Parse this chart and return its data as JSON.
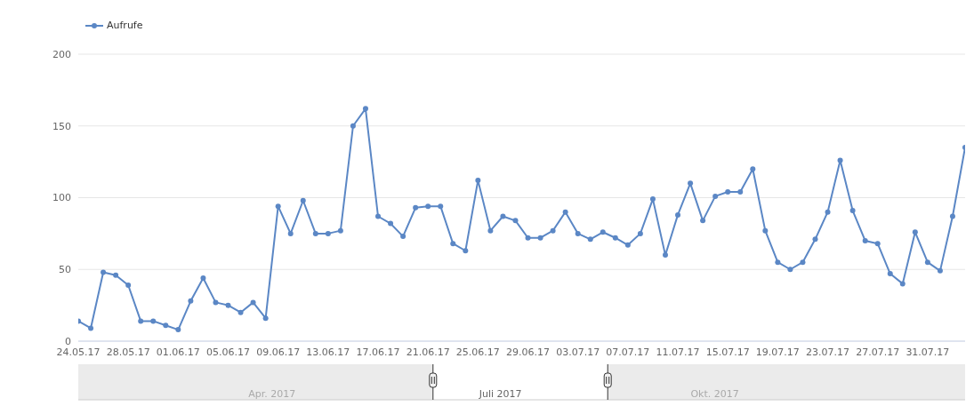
{
  "chart_data": {
    "type": "line",
    "legend": "top left",
    "grid": "y",
    "marker": "circle",
    "line_style": "solid",
    "x": [
      "2017-05-24",
      "2017-05-25",
      "2017-05-26",
      "2017-05-27",
      "2017-05-28",
      "2017-05-29",
      "2017-05-30",
      "2017-05-31",
      "2017-06-01",
      "2017-06-02",
      "2017-06-03",
      "2017-06-04",
      "2017-06-05",
      "2017-06-06",
      "2017-06-07",
      "2017-06-08",
      "2017-06-09",
      "2017-06-10",
      "2017-06-11",
      "2017-06-12",
      "2017-06-13",
      "2017-06-14",
      "2017-06-15",
      "2017-06-16",
      "2017-06-17",
      "2017-06-18",
      "2017-06-19",
      "2017-06-20",
      "2017-06-21",
      "2017-06-22",
      "2017-06-23",
      "2017-06-24",
      "2017-06-25",
      "2017-06-26",
      "2017-06-27",
      "2017-06-28",
      "2017-06-29",
      "2017-06-30",
      "2017-07-01",
      "2017-07-02",
      "2017-07-03",
      "2017-07-04",
      "2017-07-05",
      "2017-07-06",
      "2017-07-07",
      "2017-07-08",
      "2017-07-09",
      "2017-07-10",
      "2017-07-11",
      "2017-07-12",
      "2017-07-13",
      "2017-07-14",
      "2017-07-15",
      "2017-07-16",
      "2017-07-17",
      "2017-07-18",
      "2017-07-19",
      "2017-07-20",
      "2017-07-21",
      "2017-07-22",
      "2017-07-23",
      "2017-07-24",
      "2017-07-25",
      "2017-07-26",
      "2017-07-27",
      "2017-07-28",
      "2017-07-29",
      "2017-07-30",
      "2017-07-31",
      "2017-08-01",
      "2017-08-02",
      "2017-08-03"
    ],
    "series": [
      {
        "name": "Aufrufe",
        "color": "#5b87c5",
        "values": [
          14,
          9,
          48,
          46,
          39,
          14,
          14,
          11,
          8,
          28,
          44,
          27,
          25,
          20,
          27,
          16,
          94,
          75,
          98,
          75,
          75,
          77,
          150,
          162,
          87,
          82,
          73,
          93,
          94,
          94,
          68,
          63,
          112,
          77,
          87,
          84,
          72,
          72,
          77,
          90,
          75,
          71,
          76,
          72,
          67,
          75,
          99,
          60,
          88,
          110,
          84,
          101,
          104,
          104,
          120,
          77,
          55,
          50,
          55,
          71,
          90,
          126,
          91,
          70,
          68,
          47,
          40,
          76,
          55,
          49,
          87,
          135
        ]
      }
    ],
    "xlim": [
      "2017-05-24",
      "2017-08-03"
    ],
    "xticks": [
      {
        "value": "2017-05-24",
        "label": "24.05.17"
      },
      {
        "value": "2017-05-28",
        "label": "28.05.17"
      },
      {
        "value": "2017-06-01",
        "label": "01.06.17"
      },
      {
        "value": "2017-06-05",
        "label": "05.06.17"
      },
      {
        "value": "2017-06-09",
        "label": "09.06.17"
      },
      {
        "value": "2017-06-13",
        "label": "13.06.17"
      },
      {
        "value": "2017-06-17",
        "label": "17.06.17"
      },
      {
        "value": "2017-06-21",
        "label": "21.06.17"
      },
      {
        "value": "2017-06-25",
        "label": "25.06.17"
      },
      {
        "value": "2017-06-29",
        "label": "29.06.17"
      },
      {
        "value": "2017-07-03",
        "label": "03.07.17"
      },
      {
        "value": "2017-07-07",
        "label": "07.07.17"
      },
      {
        "value": "2017-07-11",
        "label": "11.07.17"
      },
      {
        "value": "2017-07-15",
        "label": "15.07.17"
      },
      {
        "value": "2017-07-19",
        "label": "19.07.17"
      },
      {
        "value": "2017-07-23",
        "label": "23.07.17"
      },
      {
        "value": "2017-07-27",
        "label": "27.07.17"
      },
      {
        "value": "2017-07-31",
        "label": "31.07.17"
      }
    ],
    "ylim": [
      0,
      200
    ],
    "yticks": [
      0,
      50,
      100,
      150,
      200
    ],
    "annotations": [
      "Apr. 2017",
      "Juli 2017",
      "Okt. 2017"
    ]
  }
}
